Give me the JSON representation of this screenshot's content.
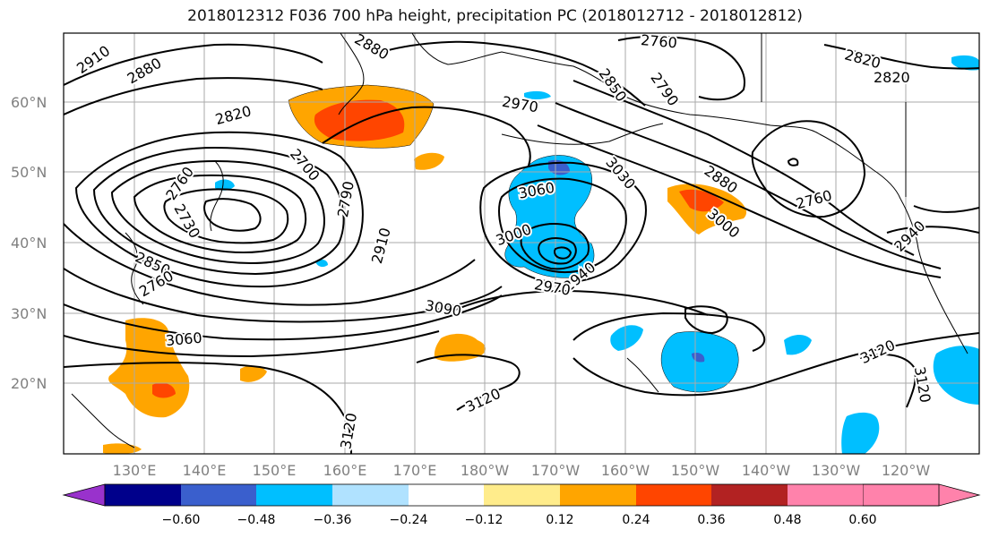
{
  "title": "2018012312 F036 700 hPa height, precipitation PC (2018012712 - 2018012812)",
  "lat_labels": [
    "60°N",
    "50°N",
    "40°N",
    "30°N",
    "20°N"
  ],
  "lon_labels": [
    "130°E",
    "140°E",
    "150°E",
    "160°E",
    "170°E",
    "180°W",
    "170°W",
    "160°W",
    "150°W",
    "140°W",
    "130°W",
    "120°W"
  ],
  "contour_labels": [
    "2910",
    "2880",
    "2880",
    "2820",
    "2760",
    "2730",
    "2700",
    "2790",
    "2910",
    "2970",
    "3060",
    "3000",
    "2940",
    "2970",
    "3030",
    "2850",
    "2790",
    "2760",
    "2820",
    "2820",
    "2880",
    "3000",
    "2760",
    "2940",
    "3090",
    "3060",
    "3120",
    "3120",
    "3120",
    "3120",
    "2850",
    "2760"
  ],
  "colorbar": {
    "ticks": [
      "−0.60",
      "−0.48",
      "−0.36",
      "−0.24",
      "−0.12",
      "0.12",
      "0.24",
      "0.36",
      "0.48",
      "0.60"
    ],
    "colors": [
      "#9932cc",
      "#00008b",
      "#3a5fcd",
      "#00bfff",
      "#b0e2ff",
      "#ffffff",
      "#ffec8b",
      "#ffa500",
      "#ff4500",
      "#b22222",
      "#ff82ab"
    ]
  },
  "fill_colors": {
    "orange": "#ffa500",
    "red_orange": "#ff4500",
    "dark_red": "#b22222",
    "light_yellow": "#ffec8b",
    "deep_sky_blue": "#00bfff",
    "light_blue": "#b0e2ff",
    "royal_blue": "#3a5fcd"
  }
}
